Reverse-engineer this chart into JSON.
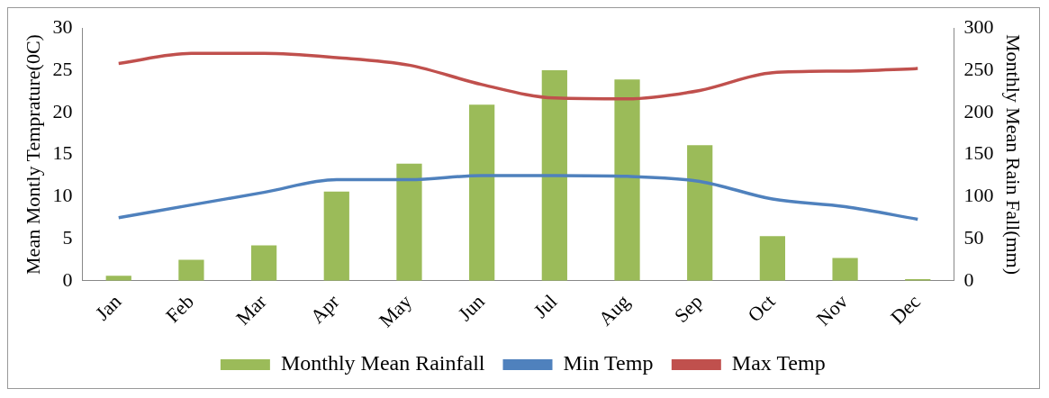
{
  "chart_data": {
    "type": "bar",
    "ylabel": "Mean Montly Temprature(0C)",
    "y2label": "Monthly Mean Rain Fall(mm)",
    "categories": [
      "Jan",
      "Feb",
      "Mar",
      "Apr",
      "May",
      "Jun",
      "Jul",
      "Aug",
      "Sep",
      "Oct",
      "Nov",
      "Dec"
    ],
    "series": [
      {
        "name": "Monthly Mean Rainfall",
        "axis": "y2",
        "color": "#9bbb59",
        "values": [
          6,
          25,
          42,
          106,
          139,
          209,
          250,
          239,
          161,
          53,
          27,
          2
        ]
      },
      {
        "name": "Min Temp",
        "type": "line",
        "color": "#4f81bd",
        "values": [
          7.5,
          9,
          10.5,
          12,
          12,
          12.5,
          12.5,
          12.4,
          11.8,
          9.7,
          8.8,
          7.3
        ]
      },
      {
        "name": "Max Temp",
        "type": "line",
        "color": "#c0504d",
        "values": [
          25.8,
          27,
          27,
          26.5,
          25.6,
          23.3,
          21.7,
          21.6,
          22.6,
          24.7,
          24.9,
          25.2
        ]
      }
    ],
    "ylim": [
      0,
      30
    ],
    "yticks": [
      0,
      5,
      10,
      15,
      20,
      25,
      30
    ],
    "y2lim": [
      0,
      300
    ],
    "y2ticks": [
      0,
      50,
      100,
      150,
      200,
      250,
      300
    ],
    "grid": false,
    "legend": "bottom",
    "marker": "none",
    "line_style": "solid"
  }
}
